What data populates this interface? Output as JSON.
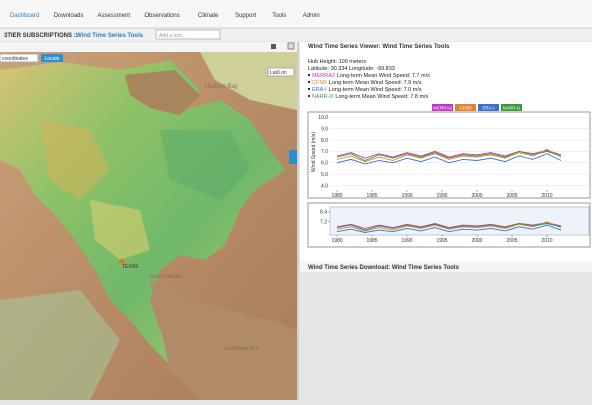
{
  "nav": {
    "items": [
      "Dashboard",
      "Downloads",
      "Assessment",
      "Observations",
      "Climate",
      "Support",
      "Tools",
      "Admin"
    ]
  },
  "subheader": {
    "title": "3TIER SUBSCRIPTIONS ::",
    "tool": "Wind Time Series Tools",
    "search_placeholder": "Add a tool..."
  },
  "map_panel": {
    "input_placeholder": "coordinates",
    "locate_button": "Locate",
    "projection": "Lat/Lon",
    "labels": [
      "Hudson Bay",
      "TEXAS",
      "Gulf of Mexico",
      "Caribbean Sea"
    ]
  },
  "viewer": {
    "title": "Wind Time Series Viewer: Wind Time Series Tools",
    "hub_height": "Hub Height: 100 meters",
    "location": "Latitude: 30.334   Longitude: -99.833",
    "means": [
      "Long-term Mean Wind Speed: 7.7 m/s",
      "Long term Mean Wind Speed: 7.9 m/s",
      "Long-term Mean Wind Speed: 7.0 m/s",
      "Long-term Mean Wind Speed: 7.8 m/s"
    ]
  },
  "chart_data": [
    {
      "type": "line",
      "y_label": "Wind Speed (m/s)",
      "x": [
        1980,
        1982,
        1984,
        1986,
        1988,
        1990,
        1992,
        1994,
        1996,
        1998,
        2000,
        2002,
        2004,
        2006,
        2008,
        2010,
        2012
      ],
      "series": [
        {
          "name": "MERRA2",
          "color": "#c233c6",
          "values": [
            6.6,
            6.9,
            6.4,
            6.8,
            6.5,
            6.9,
            6.6,
            7.0,
            6.5,
            6.8,
            6.7,
            6.9,
            6.6,
            7.0,
            6.8,
            7.1,
            6.7
          ]
        },
        {
          "name": "CFSR",
          "color": "#e8822a",
          "values": [
            6.3,
            6.6,
            6.1,
            6.5,
            6.2,
            6.7,
            6.4,
            6.8,
            6.3,
            6.6,
            6.5,
            6.7,
            6.4,
            6.9,
            6.6,
            7.2,
            6.5
          ]
        },
        {
          "name": "ERA-I",
          "color": "#3a6fd0",
          "values": [
            6.0,
            6.3,
            5.9,
            6.2,
            6.0,
            6.4,
            6.1,
            6.5,
            6.0,
            6.3,
            6.2,
            6.4,
            6.1,
            6.6,
            6.3,
            6.8,
            6.2
          ]
        },
        {
          "name": "NARR-D",
          "color": "#3a9a3a",
          "values": [
            6.5,
            6.8,
            6.2,
            6.7,
            6.4,
            6.8,
            6.5,
            6.9,
            6.4,
            6.7,
            6.6,
            6.8,
            6.5,
            7.0,
            6.7,
            7.0,
            6.6
          ]
        }
      ],
      "xlim": [
        1979,
        2016
      ],
      "xticks": [
        1980,
        1985,
        1990,
        1995,
        2000,
        2005,
        2010
      ],
      "ylim": [
        3.6,
        10.3
      ],
      "yticks": [
        {
          "value": 4,
          "label": "4.0"
        },
        {
          "value": 5,
          "label": "5.0"
        },
        {
          "value": 6,
          "label": "6.0"
        },
        {
          "value": 7,
          "label": "7.0"
        },
        {
          "value": 8,
          "label": "8.0"
        },
        {
          "value": 9,
          "label": "9.0"
        },
        {
          "value": 10,
          "label": "10.0"
        }
      ],
      "grid": true
    },
    {
      "type": "overview",
      "xlim": [
        1979,
        2016
      ],
      "xticks": [
        1980,
        1985,
        1990,
        1995,
        2000,
        2005,
        2010
      ],
      "ylim": [
        5.6,
        9.0
      ],
      "yticks": [
        7.2,
        8.4
      ]
    }
  ],
  "download": {
    "title": "Wind Time Series Download: Wind Time Series Tools"
  }
}
